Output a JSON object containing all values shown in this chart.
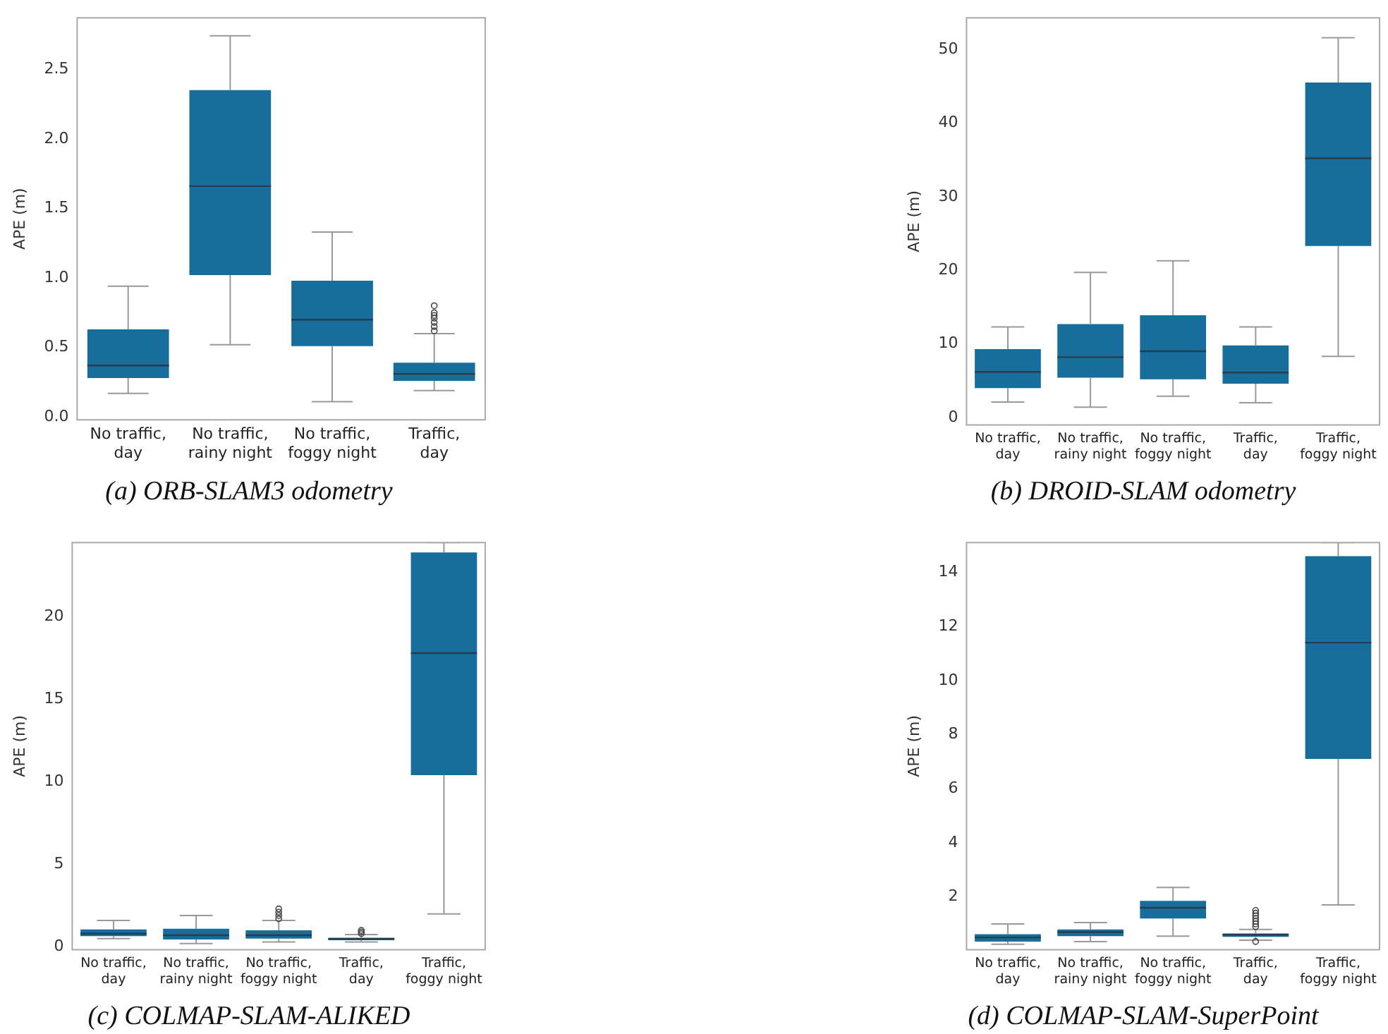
{
  "chart_data": [
    {
      "type": "box",
      "title": "(a) ORB-SLAM3 odometry",
      "ylabel": "APE (m)",
      "categories": [
        "No traffic,\nday",
        "No traffic,\nrainy night",
        "No traffic,\nfoggy night",
        "Traffic,\nday"
      ],
      "color": "#176d9c",
      "ylim": [
        -0.02,
        2.87
      ],
      "yticks": [
        {
          "value": 0,
          "label": "0.0"
        },
        0.5,
        {
          "value": 1,
          "label": "1.0"
        },
        1.5,
        {
          "value": 2,
          "label": "2.0"
        },
        2.5
      ],
      "grid": false,
      "legend": false,
      "boxes": [
        {
          "low": 0.17,
          "q1": 0.28,
          "median": 0.37,
          "q3": 0.63,
          "high": 0.94
        },
        {
          "low": 0.52,
          "q1": 1.02,
          "median": 1.66,
          "q3": 2.35,
          "high": 2.74
        },
        {
          "low": 0.11,
          "q1": 0.51,
          "median": 0.7,
          "q3": 0.98,
          "high": 1.33
        },
        {
          "low": 0.19,
          "q1": 0.26,
          "median": 0.31,
          "q3": 0.39,
          "high": 0.6,
          "outliers": [
            0.62,
            0.65,
            0.68,
            0.71,
            0.73,
            0.75,
            0.8
          ]
        }
      ]
    },
    {
      "type": "box",
      "title": "(b) DROID-SLAM odometry",
      "ylabel": "APE (m)",
      "categories": [
        "No traffic,\nday",
        "No traffic,\nrainy night",
        "No traffic,\nfoggy night",
        "Traffic,\nday",
        "Traffic,\nfoggy night"
      ],
      "color": "#176d9c",
      "ylim": [
        -1,
        54.3
      ],
      "yticks": [
        0,
        10,
        20,
        30,
        40,
        50
      ],
      "grid": false,
      "legend": false,
      "boxes": [
        {
          "low": 2.1,
          "q1": 4.0,
          "median": 6.2,
          "q3": 9.3,
          "high": 12.3
        },
        {
          "low": 1.4,
          "q1": 5.4,
          "median": 8.2,
          "q3": 12.7,
          "high": 19.7
        },
        {
          "low": 2.9,
          "q1": 5.2,
          "median": 9.0,
          "q3": 13.9,
          "high": 21.3
        },
        {
          "low": 2.0,
          "q1": 4.6,
          "median": 6.1,
          "q3": 9.8,
          "high": 12.3
        },
        {
          "low": 8.3,
          "q1": 23.3,
          "median": 35.2,
          "q3": 45.5,
          "high": 51.6
        }
      ]
    },
    {
      "type": "box",
      "title": "(c) COLMAP-SLAM-ALIKED",
      "ylabel": "APE (m)",
      "categories": [
        "No traffic,\nday",
        "No traffic,\nrainy night",
        "No traffic,\nfoggy night",
        "Traffic,\nday",
        "Traffic,\nfoggy night"
      ],
      "color": "#176d9c",
      "ylim": [
        -0.17,
        24.5
      ],
      "yticks": [
        0,
        5,
        10,
        15,
        20
      ],
      "grid": false,
      "legend": false,
      "boxes": [
        {
          "low": 0.5,
          "q1": 0.65,
          "median": 0.8,
          "q3": 1.05,
          "high": 1.6
        },
        {
          "low": 0.2,
          "q1": 0.45,
          "median": 0.7,
          "q3": 1.1,
          "high": 1.9
        },
        {
          "low": 0.3,
          "q1": 0.5,
          "median": 0.7,
          "q3": 1.0,
          "high": 1.6,
          "outliers": [
            1.7,
            1.9,
            2.1,
            2.3
          ]
        },
        {
          "low": 0.3,
          "q1": 0.4,
          "median": 0.48,
          "q3": 0.55,
          "high": 0.75,
          "outliers": [
            0.8,
            0.9,
            1.0
          ]
        },
        {
          "low": 2.0,
          "q1": 10.4,
          "median": 17.8,
          "q3": 23.9,
          "high": 24.5
        }
      ]
    },
    {
      "type": "box",
      "title": "(d) COLMAP-SLAM-SuperPoint",
      "ylabel": "APE (m)",
      "categories": [
        "No traffic,\nday",
        "No traffic,\nrainy night",
        "No traffic,\nfoggy night",
        "Traffic,\nday",
        "Traffic,\nfoggy night"
      ],
      "color": "#176d9c",
      "ylim": [
        0.05,
        15.1
      ],
      "yticks": [
        2,
        4,
        6,
        8,
        10,
        12,
        14
      ],
      "grid": false,
      "legend": false,
      "boxes": [
        {
          "low": 0.25,
          "q1": 0.35,
          "median": 0.5,
          "q3": 0.62,
          "high": 1.0
        },
        {
          "low": 0.35,
          "q1": 0.55,
          "median": 0.7,
          "q3": 0.8,
          "high": 1.05
        },
        {
          "low": 0.55,
          "q1": 1.2,
          "median": 1.6,
          "q3": 1.85,
          "high": 2.35
        },
        {
          "low": 0.4,
          "q1": 0.52,
          "median": 0.6,
          "q3": 0.65,
          "high": 0.8,
          "outliers": [
            0.35,
            0.9,
            1.0,
            1.1,
            1.2,
            1.3,
            1.4,
            1.5
          ]
        },
        {
          "low": 1.7,
          "q1": 7.1,
          "median": 11.4,
          "q3": 14.6,
          "high": 15.1
        }
      ]
    }
  ]
}
